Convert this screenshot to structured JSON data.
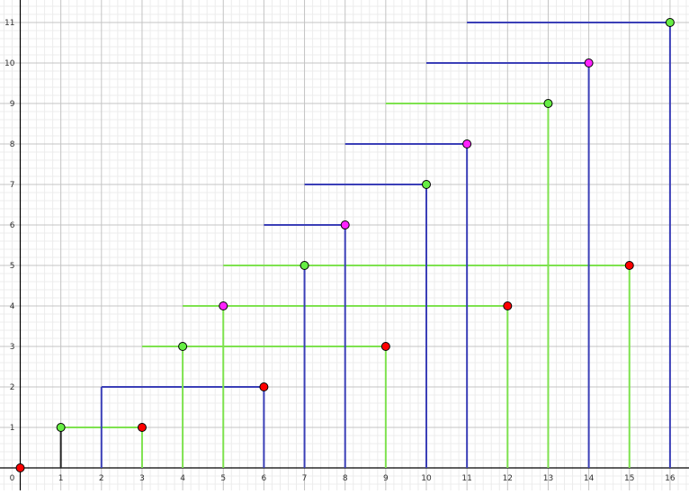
{
  "chart_data": {
    "type": "line",
    "xlim": [
      0,
      16
    ],
    "ylim": [
      0,
      11
    ],
    "x_ticks": [
      0,
      1,
      2,
      3,
      4,
      5,
      6,
      7,
      8,
      9,
      10,
      11,
      12,
      13,
      14,
      15,
      16
    ],
    "y_ticks": [
      1,
      2,
      3,
      4,
      5,
      6,
      7,
      8,
      9,
      10,
      11
    ],
    "grid": true,
    "colors": {
      "blue": "#3b3fb7",
      "green": "#7ee24f",
      "dark": "#222222",
      "point_red": "#ff0000",
      "point_green": "#66ee44",
      "point_magenta": "#ff22ff"
    },
    "segments": [
      {
        "from": [
          1,
          0
        ],
        "to": [
          1,
          1
        ],
        "color": "dark"
      },
      {
        "from": [
          1,
          1
        ],
        "to": [
          3,
          1
        ],
        "color": "green"
      },
      {
        "from": [
          3,
          0
        ],
        "to": [
          3,
          1
        ],
        "color": "green"
      },
      {
        "from": [
          2,
          0
        ],
        "to": [
          2,
          2
        ],
        "color": "blue"
      },
      {
        "from": [
          2,
          2
        ],
        "to": [
          6,
          2
        ],
        "color": "blue"
      },
      {
        "from": [
          6,
          0
        ],
        "to": [
          6,
          2
        ],
        "color": "blue"
      },
      {
        "from": [
          3,
          3
        ],
        "to": [
          9,
          3
        ],
        "color": "green"
      },
      {
        "from": [
          4,
          0
        ],
        "to": [
          4,
          3
        ],
        "color": "green"
      },
      {
        "from": [
          9,
          0
        ],
        "to": [
          9,
          3
        ],
        "color": "green"
      },
      {
        "from": [
          4,
          4
        ],
        "to": [
          12,
          4
        ],
        "color": "green"
      },
      {
        "from": [
          5,
          0
        ],
        "to": [
          5,
          4
        ],
        "color": "green"
      },
      {
        "from": [
          12,
          0
        ],
        "to": [
          12,
          4
        ],
        "color": "green"
      },
      {
        "from": [
          5,
          5
        ],
        "to": [
          15,
          5
        ],
        "color": "green"
      },
      {
        "from": [
          7,
          0
        ],
        "to": [
          7,
          5
        ],
        "color": "blue"
      },
      {
        "from": [
          15,
          0
        ],
        "to": [
          15,
          5
        ],
        "color": "green"
      },
      {
        "from": [
          6,
          6
        ],
        "to": [
          8,
          6
        ],
        "color": "blue"
      },
      {
        "from": [
          8,
          0
        ],
        "to": [
          8,
          6
        ],
        "color": "blue"
      },
      {
        "from": [
          7,
          7
        ],
        "to": [
          10,
          7
        ],
        "color": "blue"
      },
      {
        "from": [
          10,
          0
        ],
        "to": [
          10,
          7
        ],
        "color": "blue"
      },
      {
        "from": [
          8,
          8
        ],
        "to": [
          11,
          8
        ],
        "color": "blue"
      },
      {
        "from": [
          11,
          0
        ],
        "to": [
          11,
          8
        ],
        "color": "blue"
      },
      {
        "from": [
          9,
          9
        ],
        "to": [
          13,
          9
        ],
        "color": "green"
      },
      {
        "from": [
          13,
          0
        ],
        "to": [
          13,
          9
        ],
        "color": "green"
      },
      {
        "from": [
          10,
          10
        ],
        "to": [
          14,
          10
        ],
        "color": "blue"
      },
      {
        "from": [
          14,
          0
        ],
        "to": [
          14,
          10
        ],
        "color": "blue"
      },
      {
        "from": [
          11,
          11
        ],
        "to": [
          16,
          11
        ],
        "color": "blue"
      },
      {
        "from": [
          16,
          0
        ],
        "to": [
          16,
          11
        ],
        "color": "blue"
      }
    ],
    "points": [
      {
        "x": 0,
        "y": 0,
        "color": "point_red"
      },
      {
        "x": 1,
        "y": 1,
        "color": "point_green"
      },
      {
        "x": 3,
        "y": 1,
        "color": "point_red"
      },
      {
        "x": 6,
        "y": 2,
        "color": "point_red"
      },
      {
        "x": 4,
        "y": 3,
        "color": "point_green"
      },
      {
        "x": 9,
        "y": 3,
        "color": "point_red"
      },
      {
        "x": 5,
        "y": 4,
        "color": "point_magenta"
      },
      {
        "x": 12,
        "y": 4,
        "color": "point_red"
      },
      {
        "x": 7,
        "y": 5,
        "color": "point_green"
      },
      {
        "x": 15,
        "y": 5,
        "color": "point_red"
      },
      {
        "x": 8,
        "y": 6,
        "color": "point_magenta"
      },
      {
        "x": 10,
        "y": 7,
        "color": "point_green"
      },
      {
        "x": 11,
        "y": 8,
        "color": "point_magenta"
      },
      {
        "x": 13,
        "y": 9,
        "color": "point_green"
      },
      {
        "x": 14,
        "y": 10,
        "color": "point_magenta"
      },
      {
        "x": 16,
        "y": 11,
        "color": "point_green"
      }
    ]
  }
}
